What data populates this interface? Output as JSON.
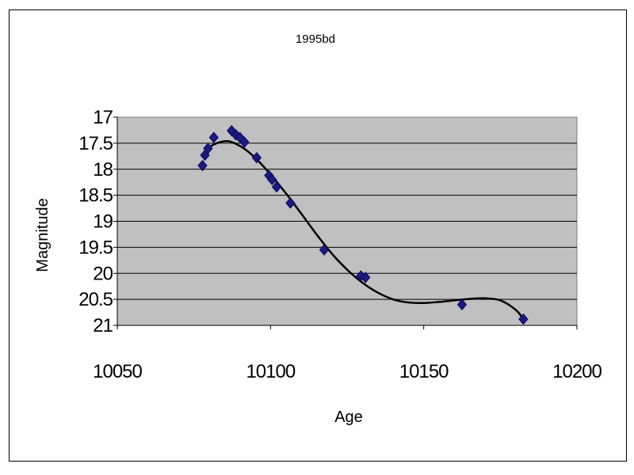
{
  "chart_data": {
    "type": "scatter",
    "title": "1995bd",
    "xlabel": "Age",
    "ylabel": "Magnitude",
    "xlim": [
      10050,
      10200
    ],
    "ylim": [
      17,
      21
    ],
    "y_inverted": true,
    "x_ticks": [
      "10050",
      "10100",
      "10150",
      "10200"
    ],
    "y_ticks": [
      "17",
      "17.5",
      "18",
      "18.5",
      "19",
      "19.5",
      "20",
      "20.5",
      "21"
    ],
    "grid": "horizontal",
    "legend": "none",
    "series": [
      {
        "marker": "diamond",
        "color": "#1a1a80",
        "x": [
          10077.8,
          10078.6,
          10079.6,
          10081.5,
          10087.3,
          10088.7,
          10090.0,
          10091.5,
          10095.5,
          10099.5,
          10100.5,
          10102.0,
          10106.5,
          10117.5,
          10129.5,
          10131.0,
          10162.5,
          10182.5
        ],
        "y": [
          17.93,
          17.73,
          17.6,
          17.39,
          17.26,
          17.34,
          17.39,
          17.48,
          17.78,
          18.12,
          18.2,
          18.34,
          18.65,
          19.55,
          20.05,
          20.08,
          20.6,
          20.88
        ]
      }
    ],
    "trendline": {
      "type": "polynomial",
      "color": "#000000",
      "x": [
        10077.5,
        10080,
        10083,
        10086,
        10089,
        10092,
        10096,
        10100,
        10105,
        10110,
        10115,
        10120,
        10125,
        10130,
        10135,
        10140,
        10145,
        10150,
        10155,
        10160,
        10165,
        10170,
        10175,
        10180,
        10182.5
      ],
      "y": [
        17.75,
        17.58,
        17.49,
        17.46,
        17.52,
        17.63,
        17.84,
        18.1,
        18.46,
        18.85,
        19.25,
        19.62,
        19.93,
        20.18,
        20.37,
        20.5,
        20.56,
        20.57,
        20.55,
        20.52,
        20.49,
        20.48,
        20.52,
        20.7,
        20.88
      ]
    }
  }
}
